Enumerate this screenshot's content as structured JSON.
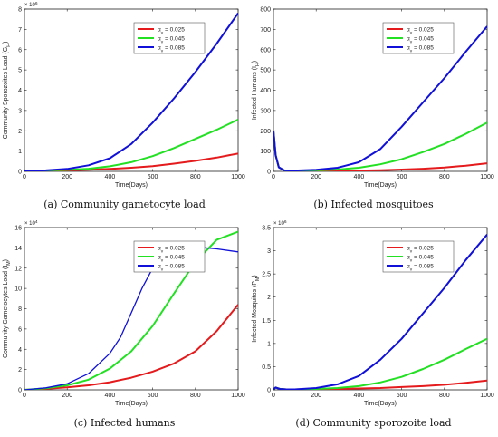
{
  "chart_data": [
    {
      "type": "line",
      "caption": "(a) Community gametocyte load",
      "xlabel": "Time(Days)",
      "ylabel": "Community Sporozoites Load (G_H)",
      "multiplier": "× 10^6",
      "xlim": [
        0,
        1000
      ],
      "ylim": [
        0,
        8
      ],
      "xticks": [
        "0",
        "200",
        "400",
        "600",
        "800",
        "1000"
      ],
      "yticks": [
        "0",
        "1",
        "2",
        "3",
        "4",
        "5",
        "6",
        "7",
        "8"
      ],
      "grid": false,
      "legend": "top-right",
      "legend_title": "α_v",
      "series": [
        {
          "name": "= 0.025",
          "color": "#e41a1c",
          "width": 2,
          "x": [
            0,
            100,
            200,
            300,
            400,
            500,
            600,
            700,
            800,
            900,
            1000
          ],
          "y": [
            0.02,
            0.03,
            0.05,
            0.08,
            0.12,
            0.18,
            0.26,
            0.38,
            0.52,
            0.68,
            0.88
          ]
        },
        {
          "name": "= 0.045",
          "color": "#22e022",
          "width": 2,
          "x": [
            0,
            100,
            200,
            300,
            400,
            500,
            600,
            700,
            800,
            900,
            1000
          ],
          "y": [
            0.02,
            0.04,
            0.07,
            0.13,
            0.25,
            0.45,
            0.75,
            1.15,
            1.6,
            2.05,
            2.55
          ]
        },
        {
          "name": "= 0.085",
          "color": "#1010d8",
          "width": 2,
          "x": [
            0,
            100,
            200,
            300,
            400,
            500,
            600,
            700,
            800,
            900,
            1000
          ],
          "y": [
            0.02,
            0.05,
            0.12,
            0.3,
            0.65,
            1.35,
            2.4,
            3.6,
            4.9,
            6.3,
            7.8
          ]
        }
      ]
    },
    {
      "type": "line",
      "caption": "(b) Infected mosquitoes",
      "xlabel": "Time(Days)",
      "ylabel": "Infected Humans (I_H)",
      "multiplier": "",
      "xlim": [
        0,
        1000
      ],
      "ylim": [
        0,
        800
      ],
      "xticks": [
        "0",
        "200",
        "400",
        "600",
        "800",
        "1000"
      ],
      "yticks": [
        "0",
        "100",
        "200",
        "300",
        "400",
        "500",
        "600",
        "700",
        "800"
      ],
      "grid": false,
      "legend": "top-right",
      "legend_title": "α_v",
      "series": [
        {
          "name": "= 0.025",
          "color": "#e41a1c",
          "width": 2,
          "x": [
            0,
            10,
            25,
            50,
            100,
            200,
            300,
            400,
            500,
            600,
            700,
            800,
            900,
            1000
          ],
          "y": [
            200,
            80,
            20,
            5,
            3,
            2,
            3,
            4,
            6,
            9,
            13,
            19,
            28,
            40
          ]
        },
        {
          "name": "= 0.045",
          "color": "#22e022",
          "width": 2,
          "x": [
            0,
            10,
            25,
            50,
            100,
            200,
            300,
            400,
            500,
            600,
            700,
            800,
            900,
            1000
          ],
          "y": [
            200,
            80,
            20,
            5,
            3,
            5,
            9,
            18,
            35,
            60,
            95,
            135,
            185,
            240
          ]
        },
        {
          "name": "= 0.085",
          "color": "#1010d8",
          "width": 2,
          "x": [
            0,
            10,
            25,
            50,
            100,
            200,
            300,
            400,
            500,
            600,
            700,
            800,
            900,
            1000
          ],
          "y": [
            200,
            80,
            20,
            5,
            4,
            8,
            18,
            45,
            110,
            220,
            340,
            460,
            590,
            715
          ]
        }
      ]
    },
    {
      "type": "line",
      "caption": "(c) Infected humans",
      "xlabel": "Time(Days)",
      "ylabel": "Community Gametocytes Load (I_M)",
      "multiplier": "× 10^4",
      "xlim": [
        0,
        1000
      ],
      "ylim": [
        0,
        16
      ],
      "xticks": [
        "0",
        "200",
        "400",
        "600",
        "800",
        "1000"
      ],
      "yticks": [
        "0",
        "2",
        "4",
        "6",
        "8",
        "10",
        "12",
        "14",
        "16"
      ],
      "grid": false,
      "legend": "top-right",
      "legend_title": "α_v",
      "series": [
        {
          "name": "= 0.025",
          "color": "#e41a1c",
          "width": 2,
          "x": [
            0,
            100,
            200,
            300,
            400,
            500,
            600,
            700,
            800,
            900,
            1000
          ],
          "y": [
            0,
            0.1,
            0.25,
            0.45,
            0.75,
            1.2,
            1.8,
            2.6,
            3.8,
            5.8,
            8.4
          ]
        },
        {
          "name": "= 0.045",
          "color": "#22e022",
          "width": 2,
          "x": [
            0,
            100,
            200,
            300,
            400,
            500,
            600,
            700,
            800,
            900,
            1000
          ],
          "y": [
            0,
            0.15,
            0.45,
            1.0,
            2.1,
            3.8,
            6.3,
            9.5,
            12.6,
            14.8,
            15.6
          ]
        },
        {
          "name": "= 0.085",
          "color": "#1010d8",
          "width": 1.3,
          "x": [
            0,
            100,
            200,
            300,
            400,
            450,
            500,
            550,
            600,
            650,
            700,
            750,
            800,
            900,
            1000
          ],
          "y": [
            0,
            0.2,
            0.6,
            1.6,
            3.6,
            5.2,
            7.6,
            10.0,
            12.0,
            13.3,
            13.9,
            14.1,
            14.1,
            13.9,
            13.6
          ]
        }
      ]
    },
    {
      "type": "line",
      "caption": "(d) Community sporozoite load",
      "xlabel": "Time(Days)",
      "ylabel": "Infected Mosquitos (P_M)",
      "multiplier": "× 10^6",
      "xlim": [
        0,
        1000
      ],
      "ylim": [
        0,
        3.5
      ],
      "xticks": [
        "0",
        "200",
        "400",
        "600",
        "800",
        "1000"
      ],
      "yticks": [
        "0",
        "0.5",
        "1",
        "1.5",
        "2",
        "2.5",
        "3",
        "3.5"
      ],
      "grid": false,
      "legend": "top-right",
      "legend_title": "α_v",
      "series": [
        {
          "name": "= 0.025",
          "color": "#e41a1c",
          "width": 2,
          "x": [
            0,
            10,
            30,
            60,
            100,
            200,
            300,
            400,
            500,
            600,
            700,
            800,
            900,
            1000
          ],
          "y": [
            0.01,
            0.05,
            0.02,
            0.01,
            0.01,
            0.015,
            0.02,
            0.03,
            0.04,
            0.06,
            0.08,
            0.11,
            0.15,
            0.2
          ]
        },
        {
          "name": "= 0.045",
          "color": "#22e022",
          "width": 2,
          "x": [
            0,
            10,
            30,
            60,
            100,
            200,
            300,
            400,
            500,
            600,
            700,
            800,
            900,
            1000
          ],
          "y": [
            0.01,
            0.05,
            0.02,
            0.01,
            0.01,
            0.02,
            0.04,
            0.08,
            0.16,
            0.28,
            0.45,
            0.65,
            0.88,
            1.1
          ]
        },
        {
          "name": "= 0.085",
          "color": "#1010d8",
          "width": 2,
          "x": [
            0,
            10,
            30,
            60,
            100,
            200,
            300,
            400,
            500,
            600,
            700,
            800,
            900,
            1000
          ],
          "y": [
            0.01,
            0.05,
            0.02,
            0.01,
            0.01,
            0.04,
            0.12,
            0.3,
            0.65,
            1.1,
            1.65,
            2.2,
            2.8,
            3.35
          ]
        }
      ]
    }
  ]
}
